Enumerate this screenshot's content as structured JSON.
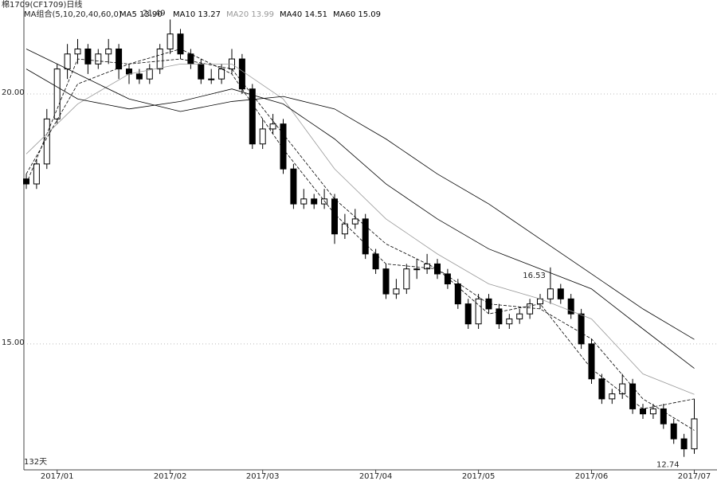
{
  "chart_data": {
    "type": "candlestick",
    "title": "棉1709(CF1709)日线",
    "subtitle": "MA组合(5,10,20,40,60,0)",
    "period_label": "132天",
    "categories": [
      null,
      null,
      null,
      "2017/01",
      null,
      null,
      null,
      null,
      null,
      null,
      null,
      null,
      null,
      null,
      "2017/02",
      null,
      null,
      null,
      null,
      null,
      null,
      null,
      null,
      "2017/03",
      null,
      null,
      null,
      null,
      null,
      null,
      null,
      null,
      null,
      null,
      "2017/04",
      null,
      null,
      null,
      null,
      null,
      null,
      null,
      null,
      null,
      "2017/05",
      null,
      null,
      null,
      null,
      null,
      null,
      null,
      null,
      null,
      null,
      "2017/06",
      null,
      null,
      null,
      null,
      null,
      null,
      null,
      null,
      null,
      "2017/07"
    ],
    "open": [
      18.3,
      18.2,
      18.6,
      19.5,
      20.5,
      20.8,
      20.9,
      20.6,
      20.8,
      20.9,
      20.5,
      20.4,
      20.3,
      20.5,
      20.9,
      21.2,
      20.8,
      20.6,
      20.3,
      20.3,
      20.5,
      20.7,
      20.1,
      19.0,
      19.3,
      19.4,
      18.5,
      17.8,
      17.9,
      17.8,
      17.9,
      17.2,
      17.4,
      17.5,
      16.8,
      16.5,
      16.0,
      16.1,
      16.5,
      16.5,
      16.6,
      16.4,
      16.2,
      15.8,
      15.4,
      15.9,
      15.7,
      15.4,
      15.5,
      15.6,
      15.8,
      15.9,
      16.1,
      15.9,
      15.6,
      15.0,
      14.3,
      13.9,
      14.0,
      14.2,
      13.7,
      13.6,
      13.7,
      13.4,
      13.1,
      12.9
    ],
    "high": [
      18.4,
      18.7,
      19.7,
      20.6,
      21.0,
      21.1,
      21.0,
      20.9,
      21.1,
      21.0,
      20.6,
      20.5,
      20.6,
      21.0,
      21.49,
      21.3,
      20.9,
      20.7,
      20.5,
      20.6,
      20.9,
      20.8,
      20.2,
      19.5,
      19.6,
      19.5,
      18.6,
      18.1,
      18.0,
      18.1,
      18.0,
      17.6,
      17.7,
      17.6,
      16.9,
      16.6,
      16.3,
      16.6,
      16.7,
      16.8,
      16.7,
      16.5,
      16.3,
      15.9,
      16.0,
      16.0,
      15.8,
      15.6,
      15.7,
      15.9,
      16.0,
      16.53,
      16.2,
      16.0,
      15.7,
      15.1,
      14.4,
      14.1,
      14.4,
      14.3,
      13.8,
      13.8,
      13.8,
      13.5,
      13.2,
      13.9
    ],
    "low": [
      18.1,
      18.1,
      18.5,
      19.4,
      20.3,
      20.6,
      20.4,
      20.5,
      20.6,
      20.3,
      20.2,
      20.2,
      20.2,
      20.4,
      20.8,
      20.7,
      20.5,
      20.2,
      20.2,
      20.2,
      20.4,
      20.0,
      18.9,
      18.9,
      19.2,
      18.4,
      17.7,
      17.7,
      17.7,
      17.7,
      17.0,
      17.1,
      17.3,
      16.7,
      16.4,
      15.9,
      15.9,
      16.0,
      16.3,
      16.4,
      16.3,
      16.1,
      15.7,
      15.3,
      15.3,
      15.6,
      15.3,
      15.3,
      15.4,
      15.5,
      15.7,
      15.8,
      15.8,
      15.5,
      14.9,
      14.2,
      13.8,
      13.8,
      13.9,
      13.6,
      13.5,
      13.5,
      13.3,
      13.0,
      12.74,
      12.8
    ],
    "close": [
      18.2,
      18.6,
      19.5,
      20.5,
      20.8,
      20.9,
      20.6,
      20.8,
      20.9,
      20.5,
      20.4,
      20.3,
      20.5,
      20.9,
      21.2,
      20.8,
      20.6,
      20.3,
      20.3,
      20.5,
      20.7,
      20.1,
      19.0,
      19.3,
      19.4,
      18.5,
      17.8,
      17.9,
      17.8,
      17.9,
      17.2,
      17.4,
      17.5,
      16.8,
      16.5,
      16.0,
      16.1,
      16.5,
      16.5,
      16.6,
      16.4,
      16.2,
      15.8,
      15.4,
      15.9,
      15.7,
      15.4,
      15.5,
      15.6,
      15.8,
      15.9,
      16.1,
      15.9,
      15.6,
      15.0,
      14.3,
      13.9,
      14.0,
      14.2,
      13.7,
      13.6,
      13.7,
      13.4,
      13.1,
      12.9,
      13.5
    ],
    "series": [
      {
        "name": "MA5",
        "label": "13.90",
        "color": "#000",
        "dashed": true,
        "x": [
          0,
          5,
          10,
          15,
          20,
          25,
          30,
          35,
          40,
          45,
          50,
          55,
          60,
          65
        ],
        "values": [
          18.2,
          20.7,
          20.6,
          20.9,
          20.4,
          18.9,
          17.6,
          16.6,
          16.5,
          15.6,
          15.8,
          14.5,
          13.7,
          13.9
        ]
      },
      {
        "name": "MA10",
        "label": "13.27",
        "color": "#000",
        "dashed": true,
        "x": [
          0,
          5,
          10,
          15,
          20,
          25,
          30,
          35,
          40,
          45,
          50,
          55,
          60,
          65
        ],
        "values": [
          18.4,
          20.2,
          20.6,
          20.7,
          20.5,
          19.2,
          17.9,
          17.0,
          16.5,
          15.8,
          15.7,
          15.1,
          13.9,
          13.27
        ]
      },
      {
        "name": "MA20",
        "label": "13.99",
        "color": "#999",
        "dashed": false,
        "x": [
          0,
          5,
          10,
          15,
          20,
          25,
          30,
          35,
          40,
          45,
          50,
          55,
          60,
          65
        ],
        "values": [
          18.8,
          19.8,
          20.4,
          20.6,
          20.6,
          19.9,
          18.5,
          17.5,
          16.8,
          16.2,
          15.9,
          15.5,
          14.4,
          13.99
        ]
      },
      {
        "name": "MA40",
        "label": "14.51",
        "color": "#000",
        "dashed": false,
        "x": [
          0,
          5,
          10,
          15,
          20,
          25,
          30,
          35,
          40,
          45,
          50,
          55,
          60,
          65
        ],
        "values": [
          20.5,
          19.9,
          19.7,
          19.85,
          20.1,
          19.8,
          19.1,
          18.2,
          17.5,
          16.9,
          16.5,
          16.1,
          15.3,
          14.51
        ]
      },
      {
        "name": "MA60",
        "label": "15.09",
        "color": "#000",
        "dashed": false,
        "x": [
          0,
          5,
          10,
          15,
          20,
          25,
          30,
          35,
          40,
          45,
          50,
          55,
          60,
          65
        ],
        "values": [
          20.9,
          20.4,
          19.9,
          19.65,
          19.85,
          19.95,
          19.7,
          19.1,
          18.4,
          17.8,
          17.1,
          16.4,
          15.7,
          15.09
        ]
      }
    ],
    "annotations": [
      {
        "x": 14,
        "y": 21.49
      },
      {
        "x": 51,
        "y": 16.53
      },
      {
        "x": 64,
        "y": 12.74
      }
    ],
    "ylim": [
      12.48,
      21.88
    ],
    "yticks": [
      {
        "value": 15,
        "label": "15.00"
      },
      {
        "value": 20,
        "label": "20.00"
      }
    ],
    "grid": true,
    "up_color": "#fff",
    "down_color": "#000"
  }
}
